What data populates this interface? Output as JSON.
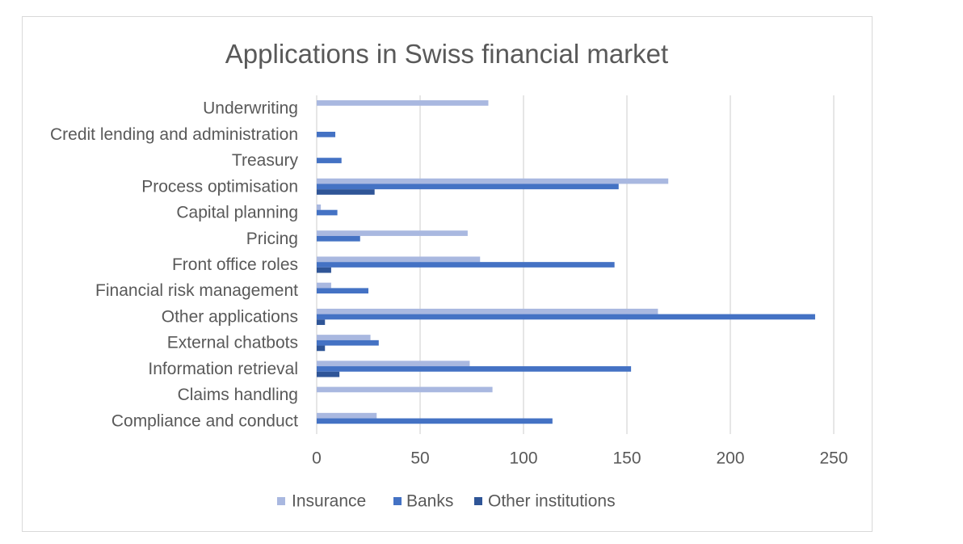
{
  "chart_data": {
    "type": "bar",
    "orientation": "horizontal",
    "title": "Applications in Swiss financial market",
    "xlim": [
      0,
      250
    ],
    "x_ticks": [
      0,
      50,
      100,
      150,
      200,
      250
    ],
    "grid": true,
    "legend_position": "bottom",
    "categories": [
      "Underwriting",
      "Credit lending and administration",
      "Treasury",
      "Process optimisation",
      "Capital planning",
      "Pricing",
      "Front office roles",
      "Financial risk management",
      "Other applications",
      "External chatbots",
      "Information retrieval",
      "Claims handling",
      "Compliance and conduct"
    ],
    "series": [
      {
        "name": "Insurance",
        "color": "#A9B8E0",
        "values": [
          83,
          0,
          0,
          170,
          2,
          73,
          79,
          7,
          165,
          26,
          74,
          85,
          29
        ]
      },
      {
        "name": "Banks",
        "color": "#4472C4",
        "values": [
          0,
          9,
          12,
          146,
          10,
          21,
          144,
          25,
          241,
          30,
          152,
          0,
          114
        ]
      },
      {
        "name": "Other institutions",
        "color": "#2F5597",
        "values": [
          0,
          0,
          0,
          28,
          0,
          0,
          7,
          0,
          4,
          4,
          11,
          0,
          0
        ]
      }
    ]
  }
}
